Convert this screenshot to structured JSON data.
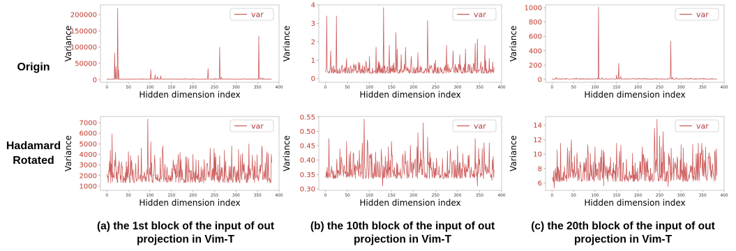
{
  "row_labels": [
    "Origin",
    "Hadamard\nRotated"
  ],
  "captions": [
    [
      "(a) the 1st block of the input of out",
      "projection in Vim-T"
    ],
    [
      "(b) the 10th block of the input of out",
      "projection in Vim-T"
    ],
    [
      "(c) the 20th block of the input of out",
      "projection in Vim-T"
    ]
  ],
  "colors": {
    "line": "#cd5c5c",
    "tick": "#c0392b"
  },
  "chart_data": [
    {
      "id": "origin-1st",
      "type": "line",
      "title": "",
      "xlabel": "Hidden dimension index",
      "ylabel": "Variance",
      "xlim": [
        -15,
        400
      ],
      "ylim": [
        -8000,
        230000
      ],
      "xticks": [
        0,
        50,
        100,
        150,
        200,
        250,
        300,
        350,
        400
      ],
      "yticks": [
        0,
        50000,
        100000,
        150000,
        200000
      ],
      "ytick_labels": [
        "0",
        "50000",
        "100000",
        "150000",
        "200000"
      ],
      "legend": "var",
      "base": 1200,
      "noise": 1500,
      "seed": 11,
      "peaks": [
        [
          18,
          82000
        ],
        [
          21,
          40000
        ],
        [
          25,
          219000
        ],
        [
          27,
          30000
        ],
        [
          102,
          31000
        ],
        [
          112,
          15000
        ],
        [
          118,
          10000
        ],
        [
          125,
          12000
        ],
        [
          235,
          34000
        ],
        [
          262,
          100000
        ],
        [
          266,
          8000
        ],
        [
          353,
          135000
        ],
        [
          358,
          6000
        ],
        [
          362,
          5000
        ]
      ]
    },
    {
      "id": "origin-10th",
      "type": "line",
      "title": "",
      "xlabel": "Hidden dimension index",
      "ylabel": "Variance",
      "xlim": [
        -15,
        400
      ],
      "ylim": [
        -0.2,
        4.0
      ],
      "xticks": [
        0,
        50,
        100,
        150,
        200,
        250,
        300,
        350,
        400
      ],
      "yticks": [
        0,
        1,
        2,
        3,
        4
      ],
      "ytick_labels": [
        "0",
        "1",
        "2",
        "3",
        "4"
      ],
      "legend": "var",
      "base": 0.28,
      "noise": 0.45,
      "seed": 23,
      "peaks": [
        [
          3,
          3.4
        ],
        [
          12,
          1.5
        ],
        [
          25,
          3.4
        ],
        [
          48,
          1.1
        ],
        [
          75,
          0.9
        ],
        [
          100,
          1.2
        ],
        [
          115,
          1.7
        ],
        [
          132,
          3.85
        ],
        [
          145,
          1.8
        ],
        [
          160,
          2.5
        ],
        [
          163,
          1.6
        ],
        [
          172,
          1.3
        ],
        [
          182,
          1.7
        ],
        [
          195,
          1.2
        ],
        [
          210,
          1.4
        ],
        [
          232,
          3.15
        ],
        [
          250,
          1.0
        ],
        [
          275,
          1.8
        ],
        [
          290,
          1.5
        ],
        [
          305,
          1.3
        ],
        [
          318,
          1.6
        ],
        [
          340,
          1.9
        ],
        [
          345,
          2.15
        ],
        [
          362,
          1.8
        ],
        [
          372,
          1.1
        ],
        [
          380,
          0.9
        ]
      ]
    },
    {
      "id": "origin-20th",
      "type": "line",
      "title": "",
      "xlabel": "Hidden dimension index",
      "ylabel": "Variance",
      "xlim": [
        -15,
        400
      ],
      "ylim": [
        -40,
        1040
      ],
      "xticks": [
        0,
        50,
        100,
        150,
        200,
        250,
        300,
        350,
        400
      ],
      "yticks": [
        0,
        200,
        400,
        600,
        800,
        1000
      ],
      "ytick_labels": [
        "0",
        "200",
        "400",
        "600",
        "800",
        "1000"
      ],
      "legend": "var",
      "base": 3,
      "noise": 10,
      "seed": 37,
      "peaks": [
        [
          10,
          30
        ],
        [
          30,
          12
        ],
        [
          108,
          1010
        ],
        [
          116,
          25
        ],
        [
          150,
          60
        ],
        [
          155,
          225
        ],
        [
          160,
          40
        ],
        [
          200,
          15
        ],
        [
          276,
          535
        ],
        [
          280,
          30
        ],
        [
          290,
          20
        ],
        [
          320,
          10
        ],
        [
          360,
          8
        ]
      ]
    },
    {
      "id": "hadamard-1st",
      "type": "line",
      "title": "",
      "xlabel": "Hidden dimension index",
      "ylabel": "Variance",
      "xlim": [
        -15,
        400
      ],
      "ylim": [
        600,
        7600
      ],
      "xticks": [
        0,
        50,
        100,
        150,
        200,
        250,
        300,
        350,
        400
      ],
      "yticks": [
        1000,
        2000,
        3000,
        4000,
        5000,
        6000,
        7000
      ],
      "ytick_labels": [
        "1000",
        "2000",
        "3000",
        "4000",
        "5000",
        "6000",
        "7000"
      ],
      "legend": "var",
      "base": 1300,
      "noise": 2100,
      "seed": 41,
      "peaks": [
        [
          12,
          5950
        ],
        [
          20,
          4200
        ],
        [
          55,
          3900
        ],
        [
          80,
          4600
        ],
        [
          95,
          7350
        ],
        [
          102,
          5200
        ],
        [
          130,
          4800
        ],
        [
          170,
          4200
        ],
        [
          200,
          4000
        ],
        [
          240,
          4600
        ],
        [
          290,
          4800
        ],
        [
          330,
          5000
        ],
        [
          360,
          4800
        ],
        [
          375,
          4100
        ]
      ]
    },
    {
      "id": "hadamard-10th",
      "type": "line",
      "title": "",
      "xlabel": "Hidden dimension index",
      "ylabel": "Variance",
      "xlim": [
        -15,
        400
      ],
      "ylim": [
        0.295,
        0.552
      ],
      "xticks": [
        0,
        50,
        100,
        150,
        200,
        250,
        300,
        350,
        400
      ],
      "yticks": [
        0.3,
        0.35,
        0.4,
        0.45,
        0.5,
        0.55
      ],
      "ytick_labels": [
        "0.30",
        "0.35",
        "0.40",
        "0.45",
        "0.50",
        "0.55"
      ],
      "legend": "var",
      "base": 0.335,
      "noise": 0.085,
      "seed": 53,
      "peaks": [
        [
          8,
          0.475
        ],
        [
          48,
          0.465
        ],
        [
          88,
          0.543
        ],
        [
          95,
          0.47
        ],
        [
          150,
          0.465
        ],
        [
          210,
          0.495
        ],
        [
          222,
          0.53
        ],
        [
          232,
          0.48
        ],
        [
          300,
          0.45
        ],
        [
          340,
          0.475
        ],
        [
          360,
          0.46
        ],
        [
          372,
          0.46
        ],
        [
          378,
          0.33
        ],
        [
          345,
          0.31
        ],
        [
          130,
          0.31
        ]
      ]
    },
    {
      "id": "hadamard-20th",
      "type": "line",
      "title": "",
      "xlabel": "Hidden dimension index",
      "ylabel": "Variance",
      "xlim": [
        -15,
        400
      ],
      "ylim": [
        5.0,
        15.2
      ],
      "xticks": [
        0,
        50,
        100,
        150,
        200,
        250,
        300,
        350,
        400
      ],
      "yticks": [
        6,
        8,
        10,
        12,
        14
      ],
      "ytick_labels": [
        "6",
        "8",
        "10",
        "12",
        "14"
      ],
      "legend": "var",
      "base": 6.2,
      "noise": 3.6,
      "seed": 67,
      "peaks": [
        [
          20,
          11.5
        ],
        [
          45,
          12.0
        ],
        [
          100,
          11.0
        ],
        [
          150,
          11.5
        ],
        [
          210,
          11.0
        ],
        [
          238,
          13.6
        ],
        [
          244,
          14.8
        ],
        [
          250,
          12.5
        ],
        [
          258,
          13.1
        ],
        [
          300,
          11.3
        ],
        [
          340,
          11.5
        ],
        [
          378,
          10.3
        ],
        [
          5,
          5.3
        ],
        [
          120,
          5.6
        ],
        [
          270,
          5.5
        ]
      ]
    }
  ]
}
